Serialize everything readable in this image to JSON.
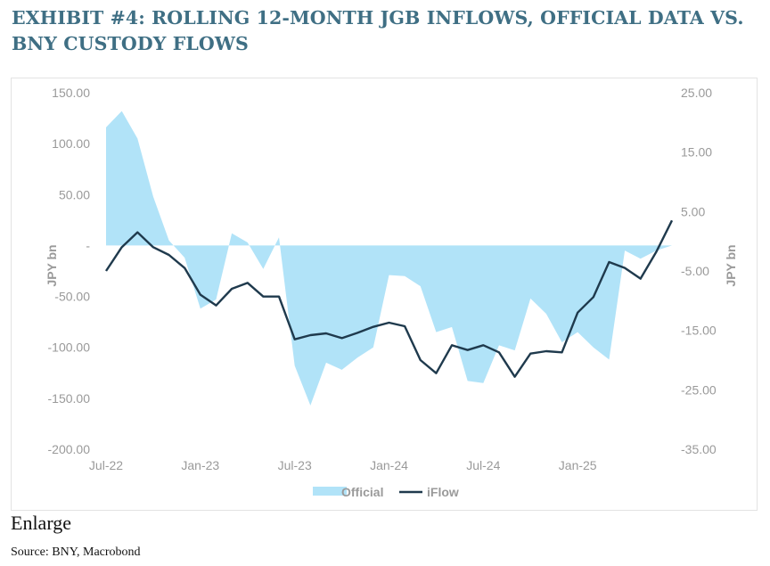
{
  "page": {
    "title": "EXHIBIT #4: ROLLING 12-MONTH JGB INFLOWS, OFFICIAL DATA VS. BNY CUSTODY FLOWS",
    "enlarge_label": "Enlarge",
    "source": "Source: BNY, Macrobond"
  },
  "colors": {
    "official": "#b1e3f8",
    "iflow": "#1f3a4d",
    "title": "#3f6f84"
  },
  "chart_data": {
    "type": "line",
    "x_labels": [
      "Jul-22",
      "Jan-23",
      "Jul-23",
      "Jan-24",
      "Jul-24",
      "Jan-25"
    ],
    "yleft": {
      "label": "JPY bn",
      "ticks": [
        "150.00",
        "100.00",
        "50.00",
        "-",
        "-50.00",
        "-100.00",
        "-150.00",
        "-200.00"
      ],
      "lim": [
        -200,
        150
      ]
    },
    "yright": {
      "label": "JPY bn",
      "ticks": [
        "25.00",
        "15.00",
        "5.00",
        "-5.00",
        "-15.00",
        "-25.00",
        "-35.00"
      ],
      "lim": [
        -35,
        25
      ]
    },
    "series": [
      {
        "name": "Official",
        "kind": "area",
        "axis": "left",
        "x": [
          0,
          1,
          2,
          3,
          4,
          5,
          6,
          7,
          8,
          9,
          10,
          11,
          12,
          13,
          14,
          15,
          16,
          17,
          18,
          19,
          20,
          21,
          22,
          23,
          24,
          25,
          26,
          27,
          28,
          29,
          30,
          31,
          32,
          33,
          34,
          35,
          36
        ],
        "values": [
          116,
          132,
          105,
          48,
          5,
          -12,
          -62,
          -53,
          12,
          3,
          -23,
          8,
          -118,
          -157,
          -115,
          -122,
          -110,
          -100,
          -29,
          -30,
          -40,
          -85,
          -80,
          -133,
          -135,
          -98,
          -103,
          -52,
          -67,
          -95,
          -85,
          -100,
          -112,
          -5,
          -13,
          -5,
          0
        ]
      },
      {
        "name": "iFlow",
        "kind": "line",
        "axis": "right",
        "x": [
          0,
          1,
          2,
          3,
          4,
          5,
          6,
          7,
          8,
          9,
          10,
          11,
          12,
          13,
          14,
          15,
          16,
          17,
          18,
          19,
          20,
          21,
          22,
          23,
          24,
          25,
          26,
          27,
          28,
          29,
          30,
          31,
          32,
          33,
          34,
          35,
          36
        ],
        "values": [
          -5,
          -1,
          1.5,
          -1,
          -2.3,
          -4.5,
          -9,
          -10.8,
          -8,
          -7,
          -9.3,
          -9.3,
          -16.5,
          -15.8,
          -15.5,
          -16.3,
          -15.4,
          -14.4,
          -13.7,
          -14.3,
          -20,
          -22.2,
          -17.5,
          -18.3,
          -17.5,
          -18.7,
          -22.8,
          -18.9,
          -18.5,
          -18.7,
          -12,
          -9.4,
          -3.5,
          -4.5,
          -6.3,
          -1.8,
          3.5
        ]
      }
    ],
    "legend": [
      "Official",
      "iFlow"
    ],
    "legend_position": "bottom",
    "grid": false
  }
}
